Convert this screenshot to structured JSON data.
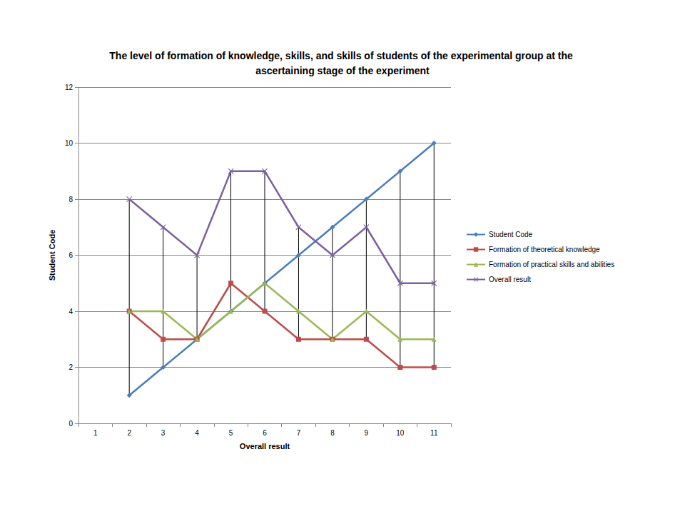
{
  "chart_data": {
    "type": "line",
    "title": "The level of formation of knowledge, skills, and skills of students of the experimental group at the ascertaining stage of the experiment",
    "x_label": "Overall result",
    "y_label": "Student Code",
    "categories": [
      "1",
      "2",
      "3",
      "4",
      "5",
      "6",
      "7",
      "8",
      "9",
      "10",
      "11"
    ],
    "series": [
      {
        "name": "Student Code",
        "color": "#4a7ebb",
        "marker": "diamond",
        "values": [
          null,
          1,
          2,
          3,
          4,
          5,
          6,
          7,
          8,
          9,
          10
        ]
      },
      {
        "name": "Formation of theoretical knowledge",
        "color": "#be4b48",
        "marker": "square",
        "values": [
          null,
          4,
          3,
          3,
          5,
          4,
          3,
          3,
          3,
          2,
          2
        ]
      },
      {
        "name": "Formation of practical skills and abilities",
        "color": "#98b954",
        "marker": "triangle",
        "values": [
          null,
          4,
          4,
          3,
          4,
          5,
          4,
          3,
          4,
          3,
          3
        ]
      },
      {
        "name": "Overall result",
        "color": "#7d60a0",
        "marker": "x",
        "values": [
          null,
          8,
          7,
          6,
          9,
          9,
          7,
          6,
          7,
          5,
          5
        ]
      }
    ],
    "ylim": [
      0,
      12
    ],
    "yticks": [
      0,
      2,
      4,
      6,
      8,
      10,
      12
    ],
    "grid": true,
    "legend": "right"
  }
}
